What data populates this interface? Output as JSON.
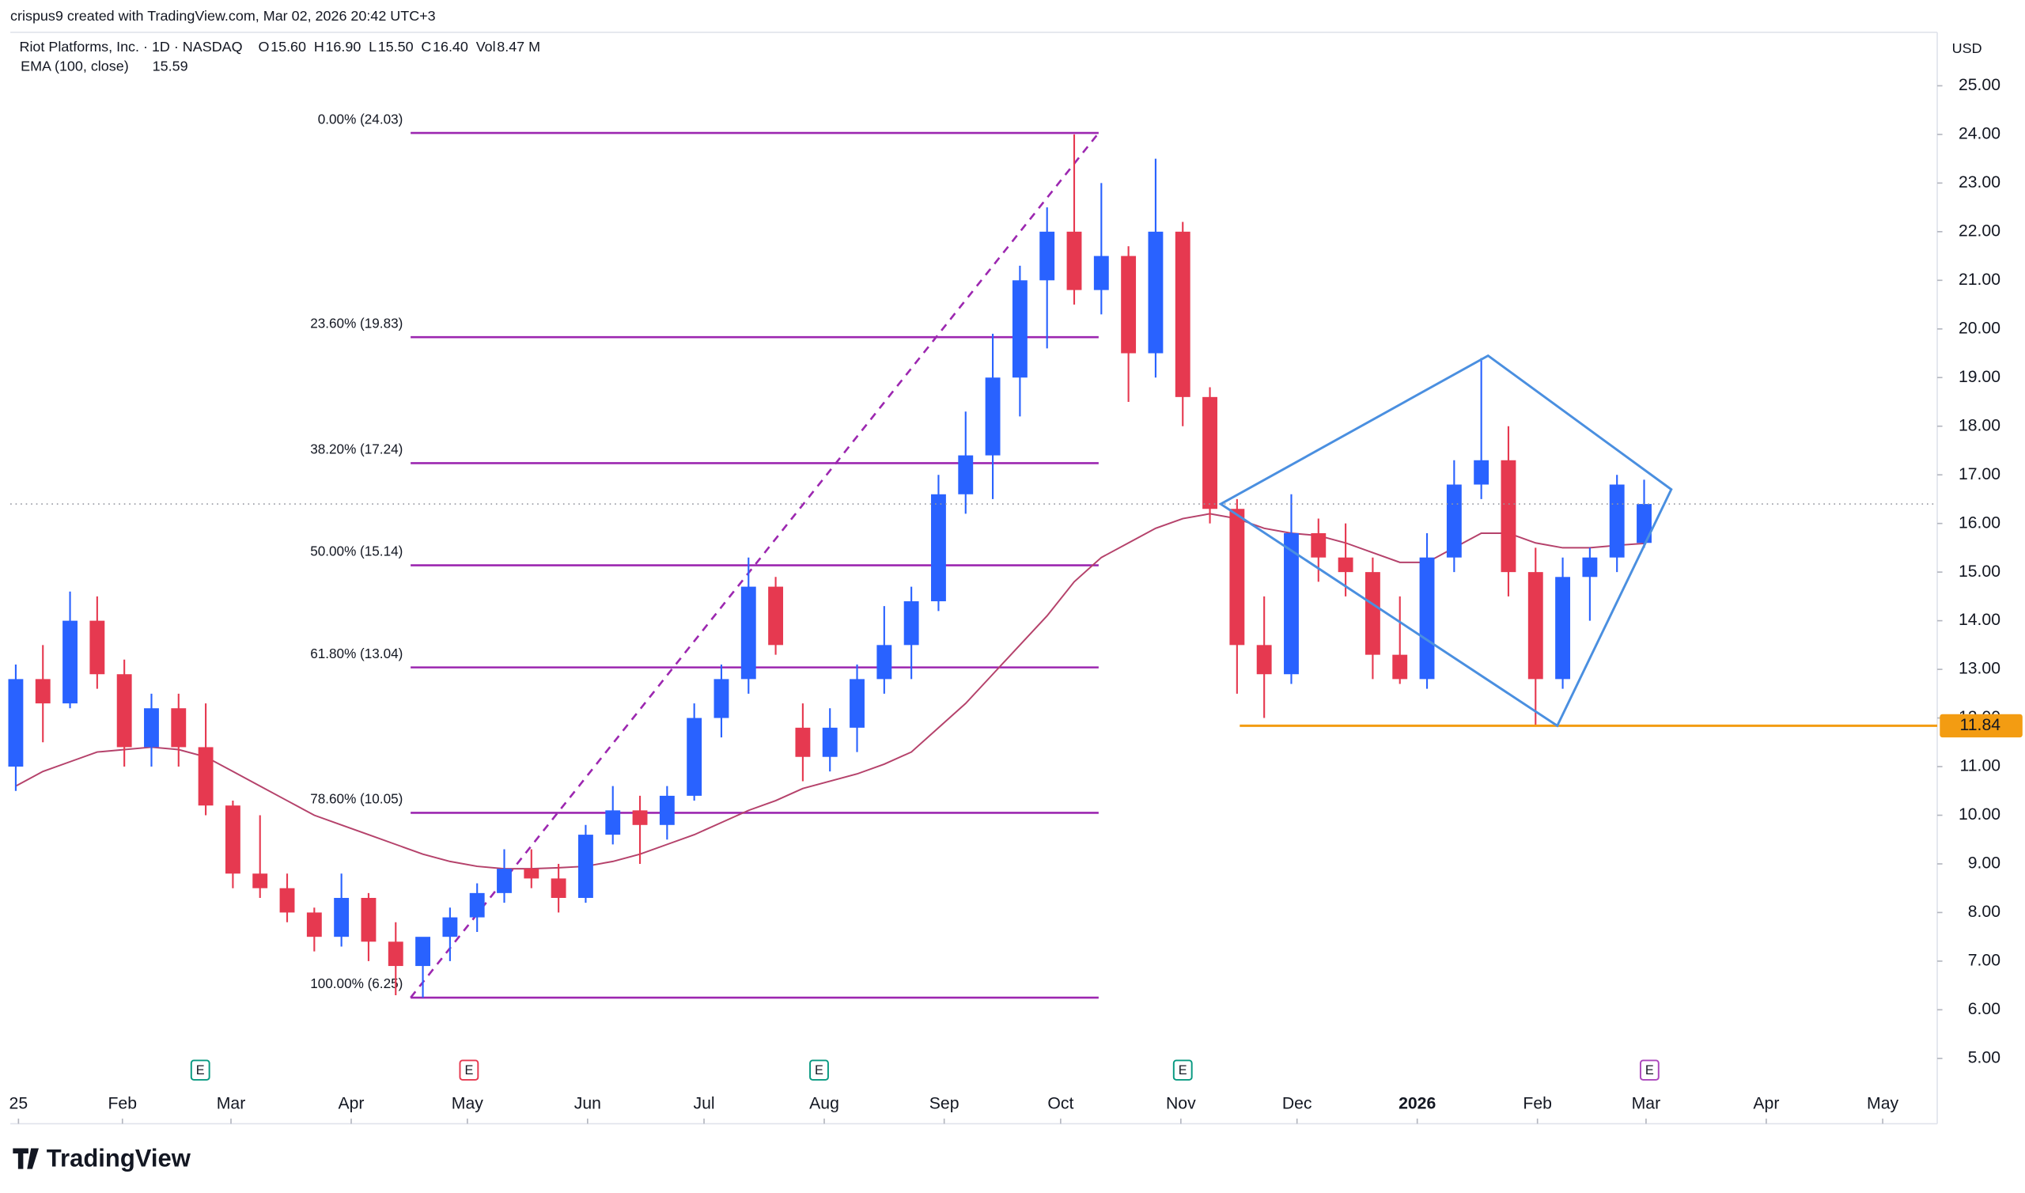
{
  "header": {
    "watermark": "crispus9 created with TradingView.com, Mar 02, 2026 20:42 UTC+3",
    "symbol": "Riot Platforms, Inc. · 1D · NASDAQ",
    "ohlc": [
      {
        "key": "O",
        "value": "15.60"
      },
      {
        "key": "H",
        "value": "16.90"
      },
      {
        "key": "L",
        "value": "15.50"
      },
      {
        "key": "C",
        "value": "16.40"
      },
      {
        "key": "Vol",
        "value": "8.47 M"
      }
    ],
    "currency": "USD"
  },
  "footer": {
    "brand": "TradingView"
  },
  "chart_data": {
    "type": "candlestick",
    "categories": [
      null,
      null,
      null,
      null,
      null,
      null,
      null,
      null,
      null,
      null,
      null,
      null,
      null,
      null,
      null,
      null,
      null,
      null,
      null,
      null,
      null,
      null,
      null,
      null,
      null,
      null,
      null,
      null,
      null,
      null,
      null,
      null,
      null,
      null,
      null,
      null,
      null,
      null,
      null,
      null,
      null,
      null,
      null,
      null,
      null,
      null,
      null,
      null,
      null,
      null,
      null,
      null,
      null,
      null,
      null,
      null,
      null,
      null,
      null,
      null,
      null
    ],
    "open": [
      11,
      12.8,
      12.3,
      14,
      12.9,
      11.4,
      12.2,
      11.4,
      10.2,
      8.8,
      8.5,
      8,
      7.5,
      8.3,
      7.4,
      6.9,
      7.5,
      7.9,
      8.4,
      8.9,
      8.7,
      8.3,
      9.6,
      10.1,
      9.8,
      10.4,
      12,
      12.8,
      14.7,
      11.8,
      11.2,
      11.8,
      12.8,
      13.5,
      14.4,
      16.6,
      17.4,
      19,
      21,
      22,
      20.8,
      21.5,
      19.5,
      22,
      18.6,
      16.3,
      13.5,
      12.9,
      15.8,
      15.3,
      15,
      13.3,
      12.8,
      15.3,
      16.8,
      17.3,
      15,
      12.8,
      14.9,
      15.3,
      15.6
    ],
    "high": [
      13.1,
      13.5,
      14.6,
      14.5,
      13.2,
      12.5,
      12.5,
      12.3,
      10.3,
      10,
      8.8,
      8.1,
      8.8,
      8.4,
      7.8,
      7.3,
      8.1,
      8.6,
      9.3,
      9.3,
      9,
      9.8,
      10.6,
      10.4,
      10.6,
      12.3,
      13.1,
      15.3,
      14.9,
      12.3,
      12.2,
      13.1,
      14.3,
      14.7,
      17,
      18.3,
      19.9,
      21.3,
      22.5,
      24,
      23,
      21.7,
      23.5,
      22.2,
      18.8,
      16.5,
      14.5,
      16.6,
      16.1,
      16,
      15.3,
      14.5,
      15.8,
      17.3,
      19.4,
      18,
      15.5,
      15.3,
      15.5,
      17,
      16.9
    ],
    "low": [
      10.5,
      11.5,
      12.2,
      12.6,
      11,
      11,
      11,
      10,
      8.5,
      8.3,
      7.8,
      7.2,
      7.3,
      7,
      6.3,
      6.25,
      7,
      7.6,
      8.2,
      8.5,
      8,
      8.2,
      9.4,
      9,
      9.5,
      10.3,
      11.6,
      12.5,
      13.3,
      10.7,
      10.9,
      11.3,
      12.5,
      12.8,
      14.2,
      16.2,
      16.5,
      18.2,
      19.6,
      20.5,
      20.3,
      18.5,
      19,
      18,
      16,
      12.5,
      12,
      12.7,
      14.8,
      14.5,
      12.8,
      12.7,
      12.6,
      15,
      16.5,
      14.5,
      11.84,
      12.6,
      14,
      15,
      15.5
    ],
    "close": [
      12.8,
      12.3,
      14,
      12.9,
      11.4,
      12.2,
      11.4,
      10.2,
      8.8,
      8.5,
      8,
      7.5,
      8.3,
      7.4,
      6.9,
      7.5,
      7.9,
      8.4,
      8.9,
      8.7,
      8.3,
      9.6,
      10.1,
      9.8,
      10.4,
      12,
      12.8,
      14.7,
      13.5,
      11.2,
      11.8,
      12.8,
      13.5,
      14.4,
      16.6,
      17.4,
      19,
      21,
      22,
      20.8,
      21.5,
      19.5,
      22,
      18.6,
      16.3,
      13.5,
      12.9,
      15.8,
      15.3,
      15,
      13.3,
      12.8,
      15.3,
      16.8,
      17.3,
      15,
      12.8,
      14.9,
      15.3,
      16.8,
      16.4
    ],
    "up_color": "#2962ff",
    "down_color": "#e63950",
    "ema": {
      "name": "EMA (100, close)",
      "label": "15.59",
      "color": "#b5426b",
      "values": [
        10.6,
        10.9,
        11.1,
        11.3,
        11.35,
        11.4,
        11.35,
        11.2,
        10.9,
        10.6,
        10.3,
        10,
        9.8,
        9.6,
        9.4,
        9.2,
        9.05,
        8.95,
        8.9,
        8.9,
        8.92,
        8.95,
        9.05,
        9.2,
        9.4,
        9.6,
        9.85,
        10.1,
        10.3,
        10.55,
        10.7,
        10.85,
        11.05,
        11.3,
        11.8,
        12.3,
        12.9,
        13.5,
        14.1,
        14.8,
        15.3,
        15.6,
        15.9,
        16.1,
        16.2,
        16.1,
        15.9,
        15.8,
        15.75,
        15.6,
        15.4,
        15.2,
        15.2,
        15.5,
        15.8,
        15.8,
        15.6,
        15.5,
        15.5,
        15.55,
        15.59
      ]
    },
    "xlim": [
      -0.2,
      70.8
    ],
    "ylim": [
      4.4,
      26.1
    ],
    "xticks": [
      {
        "value": 0.1,
        "label": "25"
      },
      {
        "value": 3.93,
        "label": "Feb"
      },
      {
        "value": 7.93,
        "label": "Mar"
      },
      {
        "value": 12.36,
        "label": "Apr"
      },
      {
        "value": 16.64,
        "label": "May"
      },
      {
        "value": 21.07,
        "label": "Jun"
      },
      {
        "value": 25.36,
        "label": "Jul"
      },
      {
        "value": 29.79,
        "label": "Aug"
      },
      {
        "value": 34.21,
        "label": "Sep"
      },
      {
        "value": 38.5,
        "label": "Oct"
      },
      {
        "value": 42.93,
        "label": "Nov"
      },
      {
        "value": 47.21,
        "label": "Dec"
      },
      {
        "value": 51.64,
        "label": "2026"
      },
      {
        "value": 56.07,
        "label": "Feb"
      },
      {
        "value": 60.07,
        "label": "Mar"
      },
      {
        "value": 64.5,
        "label": "Apr"
      },
      {
        "value": 68.79,
        "label": "May"
      }
    ],
    "yticks": [
      {
        "value": 5,
        "label": "5.00"
      },
      {
        "value": 6,
        "label": "6.00"
      },
      {
        "value": 7,
        "label": "7.00"
      },
      {
        "value": 8,
        "label": "8.00"
      },
      {
        "value": 9,
        "label": "9.00"
      },
      {
        "value": 10,
        "label": "10.00"
      },
      {
        "value": 11,
        "label": "11.00"
      },
      {
        "value": 12,
        "label": "12.00"
      },
      {
        "value": 13,
        "label": "13.00"
      },
      {
        "value": 14,
        "label": "14.00"
      },
      {
        "value": 15,
        "label": "15.00"
      },
      {
        "value": 16,
        "label": "16.00"
      },
      {
        "value": 17,
        "label": "17.00"
      },
      {
        "value": 18,
        "label": "18.00"
      },
      {
        "value": 19,
        "label": "19.00"
      },
      {
        "value": 20,
        "label": "20.00"
      },
      {
        "value": 21,
        "label": "21.00"
      },
      {
        "value": 22,
        "label": "22.00"
      },
      {
        "value": 23,
        "label": "23.00"
      },
      {
        "value": 24,
        "label": "24.00"
      },
      {
        "value": 25,
        "label": "25.00"
      }
    ],
    "fib": {
      "color": "#9c27b0",
      "x_range": [
        14.55,
        39.9
      ],
      "levels": [
        {
          "value": 24.03,
          "label": "0.00% (24.03)"
        },
        {
          "value": 19.83,
          "label": "23.60% (19.83)"
        },
        {
          "value": 17.24,
          "label": "38.20% (17.24)"
        },
        {
          "value": 15.14,
          "label": "50.00% (15.14)"
        },
        {
          "value": 13.04,
          "label": "61.80% (13.04)"
        },
        {
          "value": 10.05,
          "label": "78.60% (10.05)"
        },
        {
          "value": 6.25,
          "label": "100.00% (6.25)"
        }
      ]
    },
    "support": {
      "value": 11.84,
      "label": "11.84",
      "x_start": 45.1,
      "color": "#f39c12"
    },
    "pattern": {
      "color": "#4a8fe0",
      "x": [
        44.4,
        54.25,
        61,
        56.8
      ],
      "y": [
        16.4,
        19.45,
        16.7,
        11.84
      ]
    },
    "earnings": [
      {
        "x": 6.8,
        "label": "E",
        "color": "#089981"
      },
      {
        "x": 16.7,
        "label": "E",
        "color": "#e63950"
      },
      {
        "x": 29.6,
        "label": "E",
        "color": "#089981"
      },
      {
        "x": 43,
        "label": "E",
        "color": "#089981"
      },
      {
        "x": 60.2,
        "label": "E",
        "color": "#ab47bc"
      }
    ]
  }
}
